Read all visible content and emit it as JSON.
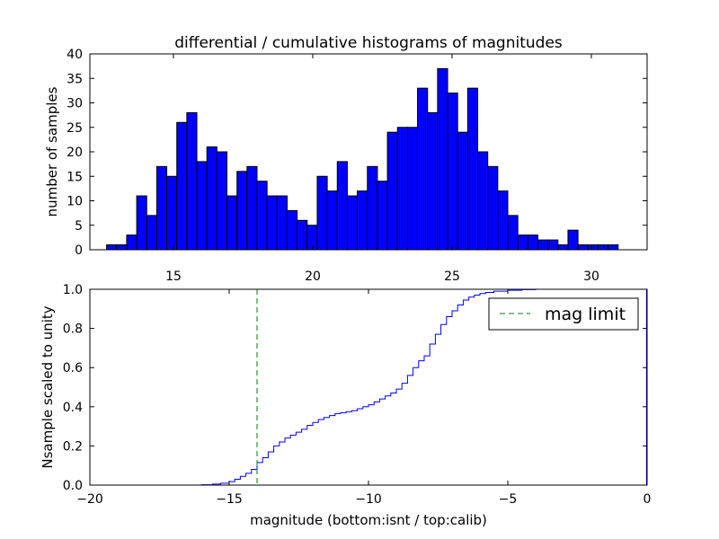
{
  "chart_data": [
    {
      "type": "bar",
      "title": "differential / cumulative histograms of magnitudes",
      "xlabel": "",
      "ylabel": "number of samples",
      "xlim": [
        12,
        32
      ],
      "ylim": [
        0,
        40
      ],
      "xticks": [
        "15",
        "20",
        "25",
        "30"
      ],
      "yticks": [
        "0",
        "5",
        "10",
        "15",
        "20",
        "25",
        "30",
        "35",
        "40"
      ],
      "bin_start": 12.6,
      "bin_width": 0.36,
      "values": [
        1,
        1,
        3,
        11,
        7,
        17,
        15,
        26,
        28,
        18,
        21,
        20,
        11,
        16,
        17,
        14,
        11,
        11,
        8,
        6,
        5,
        15,
        12,
        18,
        11,
        12,
        17,
        14,
        24,
        25,
        25,
        33,
        28,
        37,
        32,
        24,
        33,
        20,
        17,
        12,
        7,
        3,
        3,
        2,
        2,
        1,
        4,
        1,
        1,
        1,
        1
      ],
      "color": "#0000ff"
    },
    {
      "type": "line",
      "step": true,
      "xlabel": "magnitude (bottom:isnt / top:calib)",
      "ylabel": "Nsample scaled to unity",
      "xlim": [
        -20,
        0
      ],
      "ylim": [
        0,
        1
      ],
      "xticks": [
        "−20",
        "−15",
        "−10",
        "−5",
        "0"
      ],
      "yticks": [
        "0.0",
        "0.2",
        "0.4",
        "0.6",
        "0.8",
        "1.0"
      ],
      "series": [
        {
          "name": "cumulative",
          "color": "#0000ff",
          "points": [
            [
              -20,
              0
            ],
            [
              -16,
              0.002
            ],
            [
              -15.6,
              0.005
            ],
            [
              -15.3,
              0.01
            ],
            [
              -15,
              0.018
            ],
            [
              -14.8,
              0.03
            ],
            [
              -14.6,
              0.045
            ],
            [
              -14.4,
              0.06
            ],
            [
              -14.2,
              0.08
            ],
            [
              -14,
              0.115
            ],
            [
              -13.8,
              0.14
            ],
            [
              -13.6,
              0.17
            ],
            [
              -13.4,
              0.2
            ],
            [
              -13.2,
              0.22
            ],
            [
              -13,
              0.24
            ],
            [
              -12.8,
              0.255
            ],
            [
              -12.6,
              0.27
            ],
            [
              -12.4,
              0.285
            ],
            [
              -12.2,
              0.305
            ],
            [
              -12,
              0.32
            ],
            [
              -11.8,
              0.335
            ],
            [
              -11.6,
              0.345
            ],
            [
              -11.4,
              0.355
            ],
            [
              -11.2,
              0.365
            ],
            [
              -11,
              0.37
            ],
            [
              -10.8,
              0.375
            ],
            [
              -10.6,
              0.38
            ],
            [
              -10.4,
              0.39
            ],
            [
              -10.2,
              0.4
            ],
            [
              -10,
              0.41
            ],
            [
              -9.8,
              0.425
            ],
            [
              -9.6,
              0.44
            ],
            [
              -9.4,
              0.455
            ],
            [
              -9.2,
              0.47
            ],
            [
              -9,
              0.49
            ],
            [
              -8.8,
              0.52
            ],
            [
              -8.6,
              0.56
            ],
            [
              -8.4,
              0.6
            ],
            [
              -8.2,
              0.635
            ],
            [
              -8,
              0.66
            ],
            [
              -7.8,
              0.72
            ],
            [
              -7.6,
              0.77
            ],
            [
              -7.4,
              0.82
            ],
            [
              -7.2,
              0.86
            ],
            [
              -7,
              0.89
            ],
            [
              -6.8,
              0.92
            ],
            [
              -6.6,
              0.945
            ],
            [
              -6.4,
              0.96
            ],
            [
              -6.2,
              0.97
            ],
            [
              -6,
              0.978
            ],
            [
              -5.8,
              0.984
            ],
            [
              -5.5,
              0.99
            ],
            [
              -5,
              0.995
            ],
            [
              -4.5,
              0.998
            ],
            [
              -4,
              1.0
            ],
            [
              -0.02,
              1.0
            ],
            [
              -0.02,
              0.0
            ],
            [
              0,
              0.0
            ]
          ]
        },
        {
          "name": "mag limit",
          "color": "#008000",
          "dashed": true,
          "x": -14
        }
      ],
      "legend": {
        "label": "mag limit",
        "position": "upper-right"
      }
    }
  ]
}
